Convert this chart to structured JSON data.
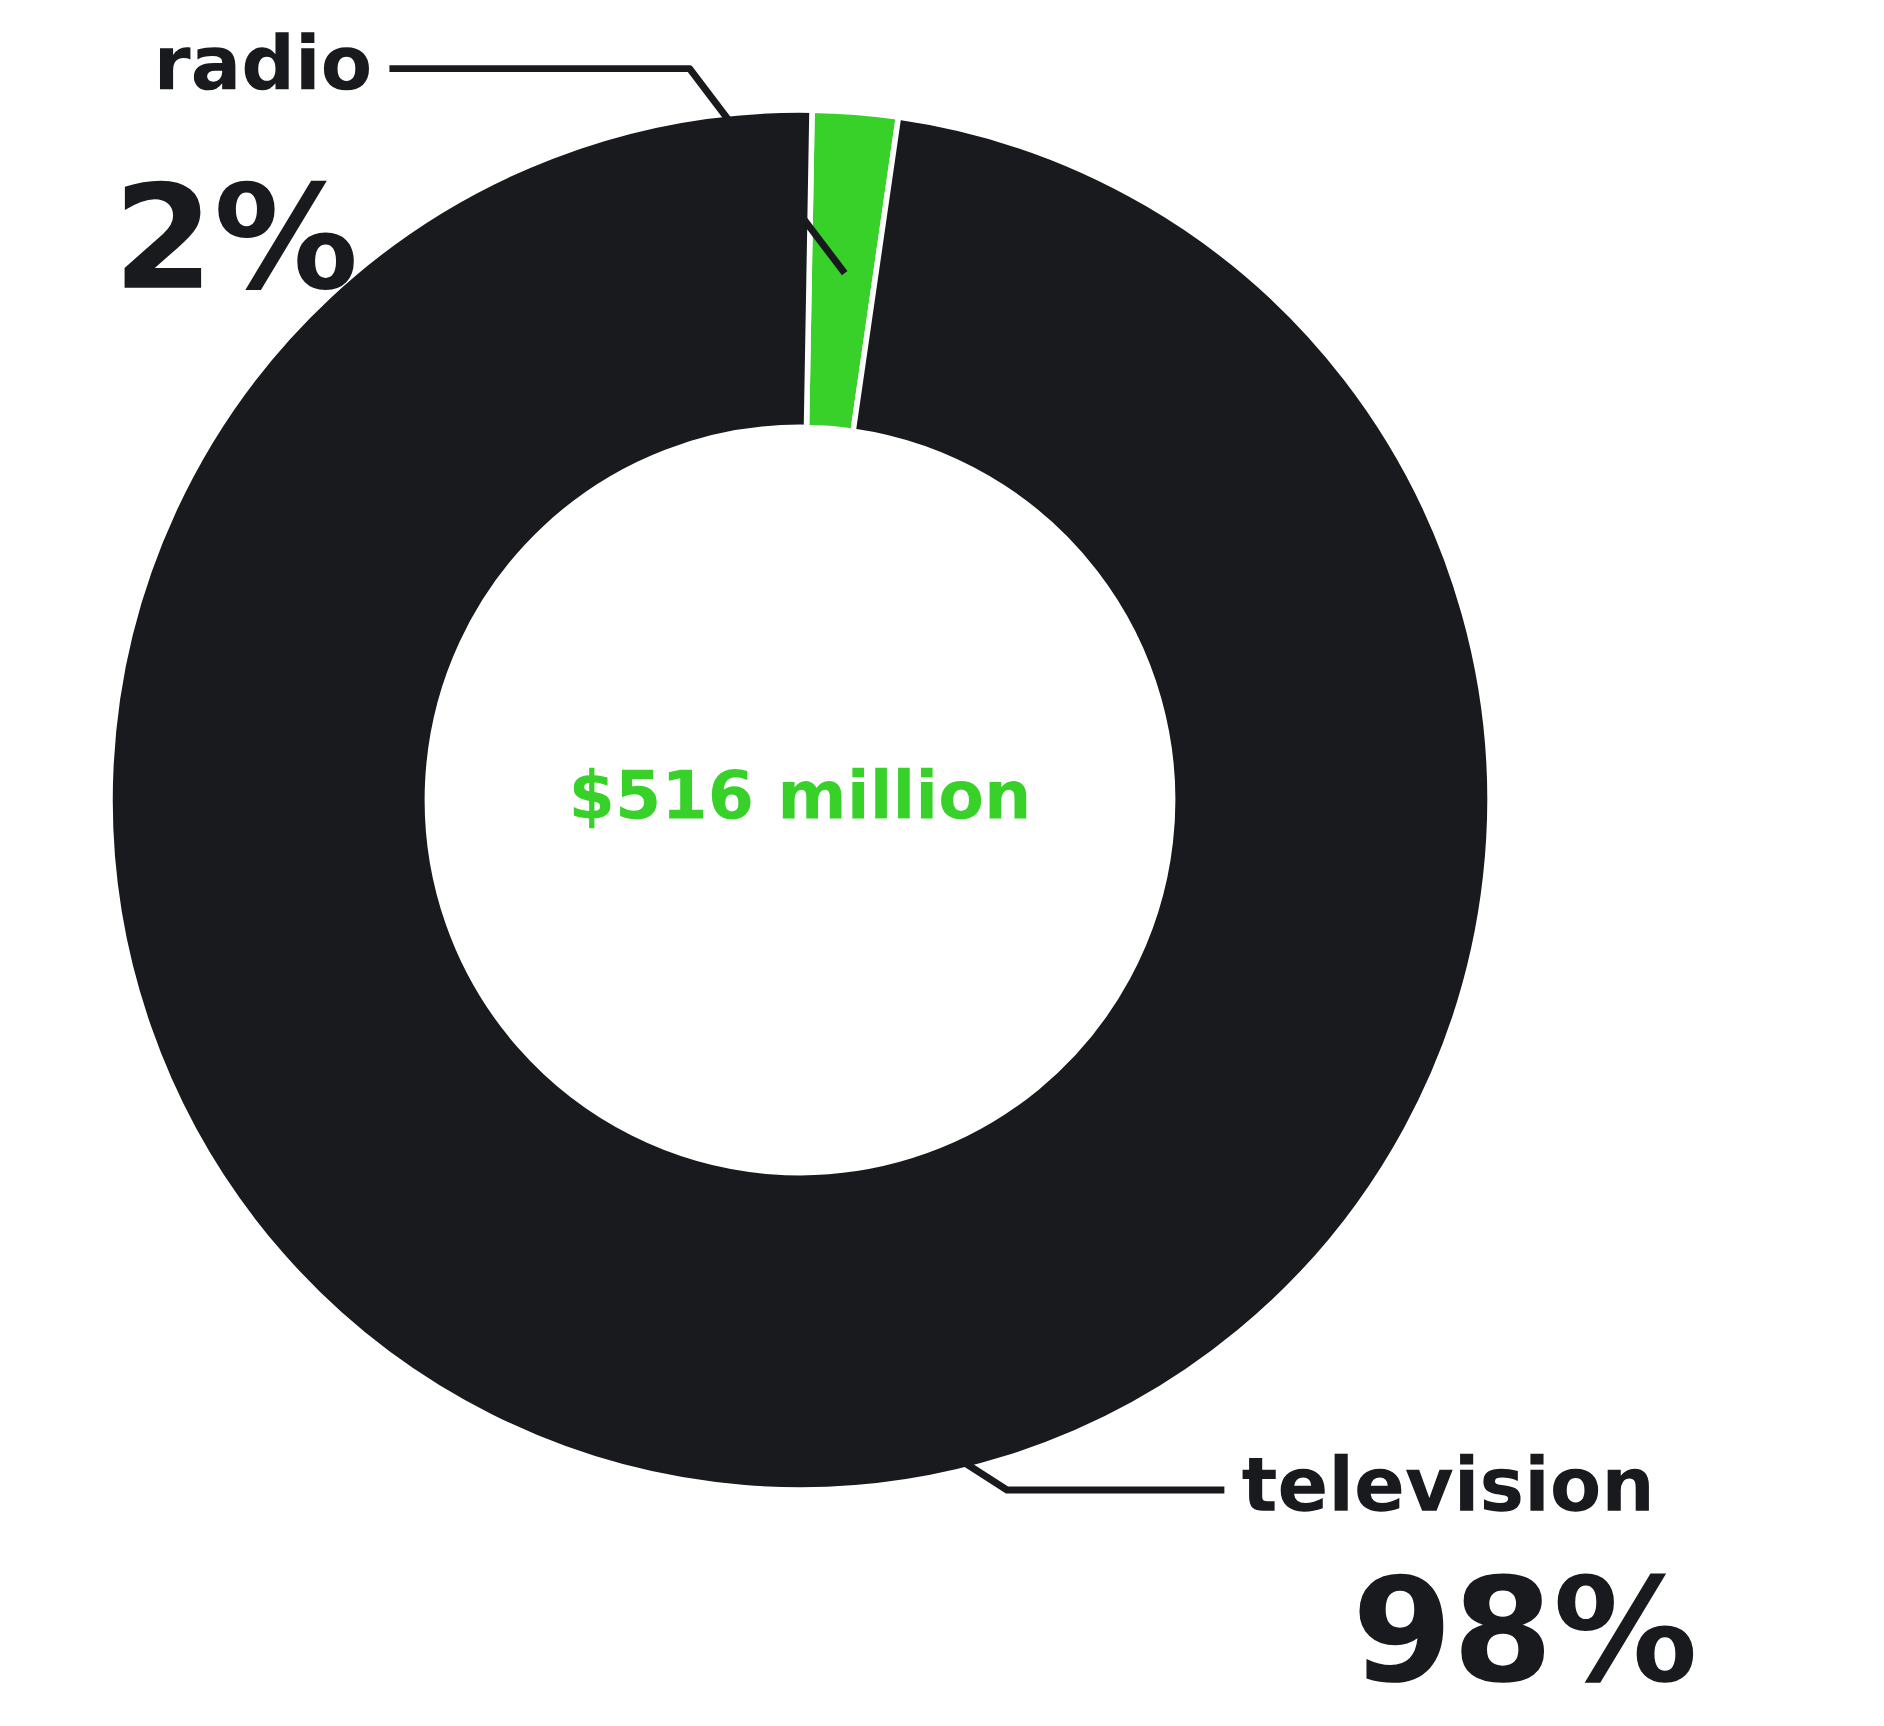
{
  "chart_data": {
    "type": "donut",
    "categories": [
      "radio",
      "television"
    ],
    "values": [
      2,
      98
    ],
    "colors": [
      "#37d12a",
      "#181a1d"
    ],
    "value_labels": [
      "2%",
      "98%"
    ],
    "annotations": [
      "$516 million"
    ]
  }
}
